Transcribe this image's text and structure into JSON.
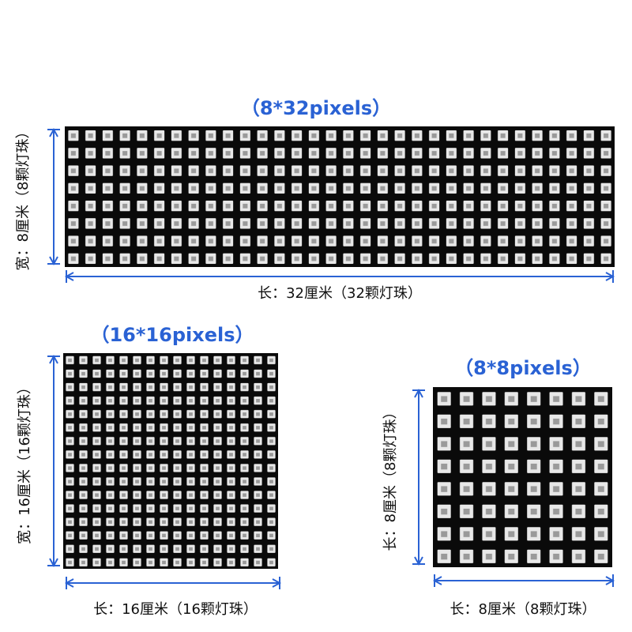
{
  "panels": [
    {
      "title": "（8*32pixels）",
      "height_label": "宽：8厘米（8颗灯珠）",
      "width_label": "长：32厘米（32颗灯珠）",
      "rows": 8,
      "cols": 32
    },
    {
      "title": "（16*16pixels）",
      "height_label": "宽：16厘米（16颗灯珠）",
      "width_label": "长：16厘米（16颗灯珠）",
      "rows": 16,
      "cols": 16
    },
    {
      "title": "（8*8pixels）",
      "height_label": "长：8厘米（8颗灯珠）",
      "width_label": "长：8厘米（8颗灯珠）",
      "rows": 8,
      "cols": 8
    }
  ]
}
